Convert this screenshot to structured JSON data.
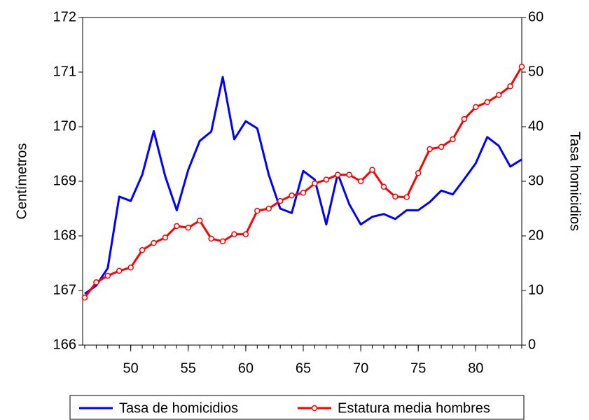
{
  "chart_data": {
    "type": "line",
    "x": [
      46,
      47,
      48,
      49,
      50,
      51,
      52,
      53,
      54,
      55,
      56,
      57,
      58,
      59,
      60,
      61,
      62,
      63,
      64,
      65,
      66,
      67,
      68,
      69,
      70,
      71,
      72,
      73,
      74,
      75,
      76,
      77,
      78,
      79,
      80,
      81,
      82,
      83,
      84
    ],
    "xlim": [
      46,
      84
    ],
    "xticks": [
      50,
      55,
      60,
      65,
      70,
      75,
      80
    ],
    "ylabel": "Centímetros",
    "ylim": [
      166,
      172
    ],
    "yticks": [
      166,
      167,
      168,
      169,
      170,
      171,
      172
    ],
    "y2label": "Tasa homicidios",
    "y2lim": [
      0,
      60
    ],
    "y2ticks": [
      0,
      10,
      20,
      30,
      40,
      50,
      60
    ],
    "legend": "bottom",
    "series": [
      {
        "name": "Tasa de homicidios",
        "color": "#0000ff",
        "axis": "y2",
        "markers": false,
        "values": [
          9.4,
          10.9,
          14.1,
          27.2,
          26.4,
          31.2,
          39.2,
          30.9,
          24.7,
          32.1,
          37.4,
          39.1,
          49.1,
          37.7,
          41.0,
          39.7,
          31.2,
          25.0,
          24.2,
          31.9,
          30.3,
          22.1,
          31.4,
          25.8,
          22.1,
          23.5,
          24.0,
          23.1,
          24.7,
          24.7,
          26.2,
          28.3,
          27.6,
          30.4,
          33.3,
          38.1,
          36.5,
          32.7,
          34.0
        ]
      },
      {
        "name": "Estatura media hombres",
        "color": "#ff0000",
        "axis": "y",
        "markers": true,
        "values": [
          166.87,
          167.15,
          167.27,
          167.36,
          167.42,
          167.74,
          167.87,
          167.97,
          168.18,
          168.15,
          168.28,
          167.95,
          167.9,
          168.03,
          168.03,
          168.46,
          168.5,
          168.64,
          168.74,
          168.79,
          168.96,
          169.03,
          169.12,
          169.12,
          169.0,
          169.21,
          168.9,
          168.72,
          168.71,
          169.15,
          169.59,
          169.63,
          169.77,
          170.14,
          170.36,
          170.45,
          170.58,
          170.74,
          171.1
        ]
      }
    ]
  }
}
